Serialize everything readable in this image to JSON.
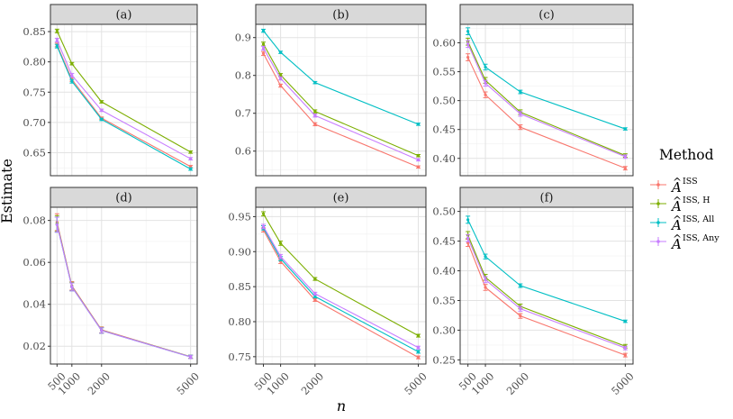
{
  "figure": {
    "ylabel": "Estimate",
    "xlabel": "n",
    "legend": {
      "title": "Method",
      "placement": "right",
      "entries": [
        {
          "key": "ISS",
          "hat": "A",
          "sup": "ISS"
        },
        {
          "key": "ISS_H",
          "hat": "A",
          "sup": "ISS, H"
        },
        {
          "key": "ISS_All",
          "hat": "A",
          "sup": "ISS, All"
        },
        {
          "key": "ISS_Any",
          "hat": "A",
          "sup": "ISS, Any"
        }
      ]
    },
    "colors": {
      "ISS": "#F8766D",
      "ISS_H": "#7CAE00",
      "ISS_All": "#00BFC4",
      "ISS_Any": "#C77CFF"
    }
  },
  "chart_data": [
    {
      "panel": "(a)",
      "type": "line",
      "x": [
        500,
        1000,
        2000,
        5000
      ],
      "x_ticks": [
        "500",
        "1000",
        "2000",
        "5000"
      ],
      "ylim": [
        0.612,
        0.862
      ],
      "y_ticks": [
        "0.65",
        "0.70",
        "0.75",
        "0.80",
        "0.85"
      ],
      "series": [
        {
          "key": "ISS",
          "values": [
            0.828,
            0.771,
            0.707,
            0.627
          ],
          "err": [
            0.003,
            0.003,
            0.002,
            0.002
          ]
        },
        {
          "key": "ISS_H",
          "values": [
            0.851,
            0.797,
            0.734,
            0.651
          ],
          "err": [
            0.003,
            0.002,
            0.002,
            0.002
          ]
        },
        {
          "key": "ISS_All",
          "values": [
            0.826,
            0.768,
            0.705,
            0.623
          ],
          "err": [
            0.003,
            0.003,
            0.002,
            0.002
          ]
        },
        {
          "key": "ISS_Any",
          "values": [
            0.836,
            0.778,
            0.72,
            0.64
          ],
          "err": [
            0.003,
            0.003,
            0.002,
            0.002
          ]
        }
      ]
    },
    {
      "panel": "(b)",
      "type": "line",
      "x": [
        500,
        1000,
        2000,
        5000
      ],
      "x_ticks": [
        "500",
        "1000",
        "2000",
        "5000"
      ],
      "ylim": [
        0.535,
        0.935
      ],
      "y_ticks": [
        "0.6",
        "0.7",
        "0.8",
        "0.9"
      ],
      "series": [
        {
          "key": "ISS",
          "values": [
            0.858,
            0.773,
            0.671,
            0.558
          ],
          "err": [
            0.005,
            0.004,
            0.004,
            0.003
          ]
        },
        {
          "key": "ISS_H",
          "values": [
            0.883,
            0.801,
            0.705,
            0.588
          ],
          "err": [
            0.005,
            0.004,
            0.004,
            0.003
          ]
        },
        {
          "key": "ISS_All",
          "values": [
            0.918,
            0.861,
            0.781,
            0.671
          ],
          "err": [
            0.004,
            0.003,
            0.003,
            0.003
          ]
        },
        {
          "key": "ISS_Any",
          "values": [
            0.872,
            0.792,
            0.694,
            0.577
          ],
          "err": [
            0.005,
            0.004,
            0.004,
            0.003
          ]
        }
      ]
    },
    {
      "panel": "(c)",
      "type": "line",
      "x": [
        500,
        1000,
        2000,
        5000
      ],
      "x_ticks": [
        "500",
        "1000",
        "2000",
        "5000"
      ],
      "ylim": [
        0.37,
        0.632
      ],
      "y_ticks": [
        "0.40",
        "0.45",
        "0.50",
        "0.55",
        "0.60"
      ],
      "series": [
        {
          "key": "ISS",
          "values": [
            0.575,
            0.51,
            0.454,
            0.383
          ],
          "err": [
            0.006,
            0.005,
            0.004,
            0.003
          ]
        },
        {
          "key": "ISS_H",
          "values": [
            0.602,
            0.535,
            0.48,
            0.405
          ],
          "err": [
            0.006,
            0.005,
            0.004,
            0.003
          ]
        },
        {
          "key": "ISS_All",
          "values": [
            0.62,
            0.558,
            0.515,
            0.451
          ],
          "err": [
            0.006,
            0.005,
            0.003,
            0.002
          ]
        },
        {
          "key": "ISS_Any",
          "values": [
            0.598,
            0.53,
            0.477,
            0.403
          ],
          "err": [
            0.006,
            0.005,
            0.004,
            0.003
          ]
        }
      ]
    },
    {
      "panel": "(d)",
      "type": "line",
      "x": [
        500,
        1000,
        2000,
        5000
      ],
      "x_ticks": [
        "500",
        "1000",
        "2000",
        "5000"
      ],
      "ylim": [
        0.0115,
        0.0863
      ],
      "y_ticks": [
        "0.02",
        "0.04",
        "0.06",
        "0.08"
      ],
      "series": [
        {
          "key": "ISS",
          "values": [
            0.0792,
            0.0488,
            0.0278,
            0.015
          ],
          "err": [
            0.004,
            0.002,
            0.0014,
            0.0008
          ]
        },
        {
          "key": "ISS_H",
          "values": [
            0.0785,
            0.0485,
            0.0276,
            0.015
          ],
          "err": [
            0.0038,
            0.002,
            0.0014,
            0.0008
          ]
        },
        {
          "key": "ISS_All",
          "values": [
            0.078,
            0.0483,
            0.0275,
            0.0149
          ],
          "err": [
            0.0036,
            0.0019,
            0.0013,
            0.0008
          ]
        },
        {
          "key": "ISS_Any",
          "values": [
            0.078,
            0.0483,
            0.0275,
            0.0149
          ],
          "err": [
            0.0036,
            0.0019,
            0.0013,
            0.0008
          ]
        }
      ]
    },
    {
      "panel": "(e)",
      "type": "line",
      "x": [
        500,
        1000,
        2000,
        5000
      ],
      "x_ticks": [
        "500",
        "1000",
        "2000",
        "5000"
      ],
      "ylim": [
        0.7395,
        0.9634
      ],
      "y_ticks": [
        "0.75",
        "0.80",
        "0.85",
        "0.90",
        "0.95"
      ],
      "series": [
        {
          "key": "ISS",
          "values": [
            0.931,
            0.886,
            0.831,
            0.749
          ],
          "err": [
            0.003,
            0.003,
            0.002,
            0.002
          ]
        },
        {
          "key": "ISS_H",
          "values": [
            0.954,
            0.912,
            0.861,
            0.78
          ],
          "err": [
            0.003,
            0.003,
            0.002,
            0.002
          ]
        },
        {
          "key": "ISS_All",
          "values": [
            0.934,
            0.89,
            0.836,
            0.757
          ],
          "err": [
            0.003,
            0.003,
            0.002,
            0.002
          ]
        },
        {
          "key": "ISS_Any",
          "values": [
            0.936,
            0.893,
            0.84,
            0.763
          ],
          "err": [
            0.003,
            0.003,
            0.002,
            0.002
          ]
        }
      ]
    },
    {
      "panel": "(f)",
      "type": "line",
      "x": [
        500,
        1000,
        2000,
        5000
      ],
      "x_ticks": [
        "500",
        "1000",
        "2000",
        "5000"
      ],
      "ylim": [
        0.243,
        0.507
      ],
      "y_ticks": [
        "0.25",
        "0.30",
        "0.35",
        "0.40",
        "0.45",
        "0.50"
      ],
      "series": [
        {
          "key": "ISS",
          "values": [
            0.447,
            0.372,
            0.324,
            0.258
          ],
          "err": [
            0.006,
            0.005,
            0.004,
            0.003
          ]
        },
        {
          "key": "ISS_H",
          "values": [
            0.46,
            0.389,
            0.34,
            0.273
          ],
          "err": [
            0.006,
            0.005,
            0.004,
            0.003
          ]
        },
        {
          "key": "ISS_All",
          "values": [
            0.486,
            0.424,
            0.375,
            0.315
          ],
          "err": [
            0.006,
            0.004,
            0.003,
            0.002
          ]
        },
        {
          "key": "ISS_Any",
          "values": [
            0.455,
            0.385,
            0.336,
            0.27
          ],
          "err": [
            0.006,
            0.005,
            0.004,
            0.003
          ]
        }
      ]
    }
  ]
}
